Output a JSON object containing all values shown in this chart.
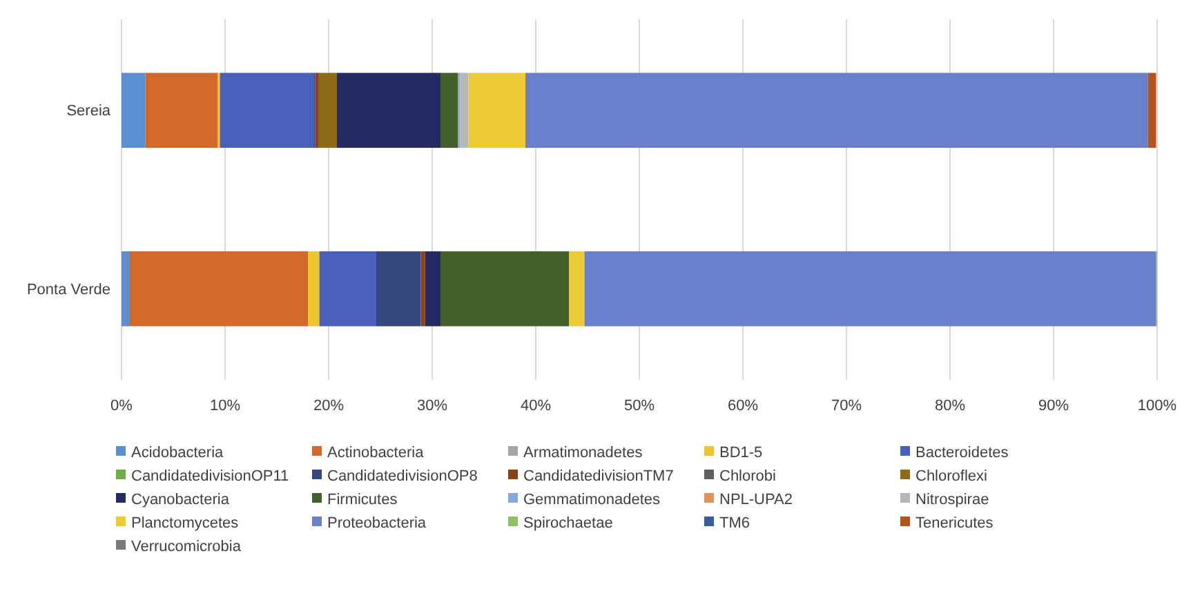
{
  "chart_data": {
    "type": "bar",
    "orientation": "horizontal",
    "stacked": true,
    "categories": [
      "Sereia",
      "Ponta Verde"
    ],
    "xlim": [
      0,
      100
    ],
    "xticks": [
      {
        "value": 0,
        "label": "0%"
      },
      {
        "value": 10,
        "label": "10%"
      },
      {
        "value": 20,
        "label": "20%"
      },
      {
        "value": 30,
        "label": "30%"
      },
      {
        "value": 40,
        "label": "40%"
      },
      {
        "value": 50,
        "label": "50%"
      },
      {
        "value": 60,
        "label": "60%"
      },
      {
        "value": 70,
        "label": "70%"
      },
      {
        "value": 80,
        "label": "80%"
      },
      {
        "value": 90,
        "label": "90%"
      },
      {
        "value": 100,
        "label": "100%"
      }
    ],
    "grid": "x",
    "legend": "bottom",
    "series": [
      {
        "name": "Acidobacteria",
        "color": "#5b8fd0",
        "values": [
          2.3,
          0.8
        ]
      },
      {
        "name": "Actinobacteria",
        "color": "#d2692a",
        "values": [
          7.0,
          17.2
        ]
      },
      {
        "name": "Armatimonadetes",
        "color": "#a5a5a5",
        "values": [
          0,
          0
        ]
      },
      {
        "name": "BD1-5",
        "color": "#ecc531",
        "values": [
          0.2,
          1.1
        ]
      },
      {
        "name": "Bacteroidetes",
        "color": "#4a5fbb",
        "values": [
          9.1,
          5.5
        ]
      },
      {
        "name": "CandidatedivisionOP11",
        "color": "#6fae46",
        "values": [
          0,
          0
        ]
      },
      {
        "name": "CandidatedivisionOP8",
        "color": "#34487e",
        "values": [
          0.1,
          4.3
        ]
      },
      {
        "name": "CandidatedivisionTM7",
        "color": "#8c4218",
        "values": [
          0.3,
          0.4
        ]
      },
      {
        "name": "Chlorobi",
        "color": "#5f5f5f",
        "values": [
          0,
          0
        ]
      },
      {
        "name": "Chloroflexi",
        "color": "#8c6a18",
        "values": [
          1.8,
          0
        ]
      },
      {
        "name": "Cyanobacteria",
        "color": "#232b62",
        "values": [
          10.0,
          1.5
        ]
      },
      {
        "name": "Firmicutes",
        "color": "#43602a",
        "values": [
          1.7,
          12.4
        ]
      },
      {
        "name": "Gemmatimonadetes",
        "color": "#86a9dc",
        "values": [
          0.2,
          0
        ]
      },
      {
        "name": "NPL-UPA2",
        "color": "#e39358",
        "values": [
          0,
          0
        ]
      },
      {
        "name": "Nitrospirae",
        "color": "#b7b7b7",
        "values": [
          0.8,
          0
        ]
      },
      {
        "name": "Planctomycetes",
        "color": "#ecca36",
        "values": [
          5.5,
          1.5
        ]
      },
      {
        "name": "Proteobacteria",
        "color": "#6a7fca",
        "values": [
          60.1,
          55.2
        ]
      },
      {
        "name": "Spirochaetae",
        "color": "#8cc168",
        "values": [
          0,
          0.1
        ]
      },
      {
        "name": "TM6",
        "color": "#3a5aa6",
        "values": [
          0,
          0
        ]
      },
      {
        "name": "Tenericutes",
        "color": "#b5531c",
        "values": [
          0.8,
          0
        ]
      },
      {
        "name": "Verrucomicrobia",
        "color": "#7a7a7a",
        "values": [
          0,
          0
        ]
      }
    ]
  }
}
